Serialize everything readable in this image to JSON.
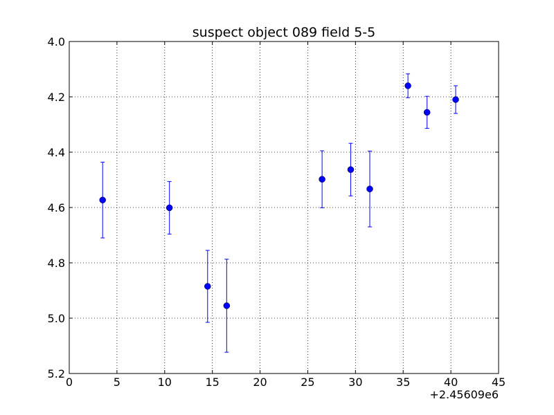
{
  "chart_data": {
    "type": "scatter",
    "title": "suspect object 089 field 5-5",
    "xlabel": "",
    "ylabel": "",
    "x_offset_label": "+2.45609e6",
    "xlim": [
      0,
      45
    ],
    "ylim": [
      5.2,
      4.0
    ],
    "y_inverted": true,
    "grid": true,
    "x_ticks": [
      0,
      5,
      10,
      15,
      20,
      25,
      30,
      35,
      40,
      45
    ],
    "y_ticks": [
      4.0,
      4.2,
      4.4,
      4.6,
      4.8,
      5.0,
      5.2
    ],
    "x_tick_labels": [
      "0",
      "5",
      "10",
      "15",
      "20",
      "25",
      "30",
      "35",
      "40",
      "45"
    ],
    "y_tick_labels": [
      "4.0",
      "4.2",
      "4.4",
      "4.6",
      "4.8",
      "5.0",
      "5.2"
    ],
    "series": [
      {
        "color": "#0000ff",
        "x": [
          3.5,
          10.5,
          14.5,
          16.5,
          26.5,
          29.5,
          31.5,
          35.5,
          37.5,
          40.5
        ],
        "y": [
          4.573,
          4.601,
          4.885,
          4.955,
          4.498,
          4.463,
          4.533,
          4.16,
          4.256,
          4.21
        ],
        "yerr": [
          0.137,
          0.095,
          0.13,
          0.168,
          0.103,
          0.095,
          0.137,
          0.043,
          0.058,
          0.05
        ]
      }
    ]
  }
}
